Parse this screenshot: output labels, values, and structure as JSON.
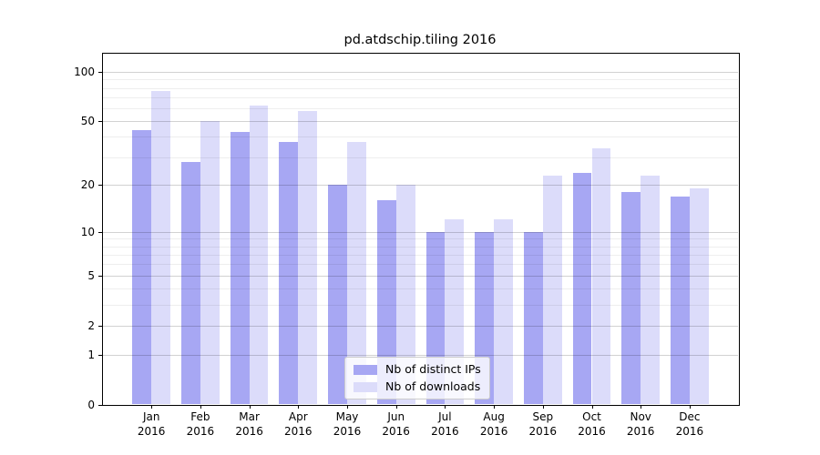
{
  "chart_data": {
    "type": "bar",
    "title": "pd.atdschip.tiling 2016",
    "categories": [
      "Jan",
      "Feb",
      "Mar",
      "Apr",
      "May",
      "Jun",
      "Jul",
      "Aug",
      "Sep",
      "Oct",
      "Nov",
      "Dec"
    ],
    "category_year": "2016",
    "series": [
      {
        "name": "Nb of distinct IPs",
        "color": "#a7a7f3",
        "values": [
          44,
          28,
          43,
          37,
          20,
          16,
          10,
          10,
          10,
          24,
          18,
          17
        ]
      },
      {
        "name": "Nb of downloads",
        "color": "#dcdcfa",
        "values": [
          77,
          50,
          62,
          58,
          37,
          20,
          12,
          12,
          23,
          34,
          23,
          19
        ]
      }
    ],
    "yscale": "log1p",
    "ylim": [
      0,
      130
    ],
    "yticks_major": [
      100,
      50,
      20,
      10,
      5,
      2,
      1,
      0
    ],
    "yticks_minor": [
      90,
      80,
      70,
      60,
      40,
      30,
      9,
      8,
      7,
      6,
      4,
      3
    ],
    "grid": "on",
    "grid_above_bars": true,
    "legend_position": "lower center"
  }
}
